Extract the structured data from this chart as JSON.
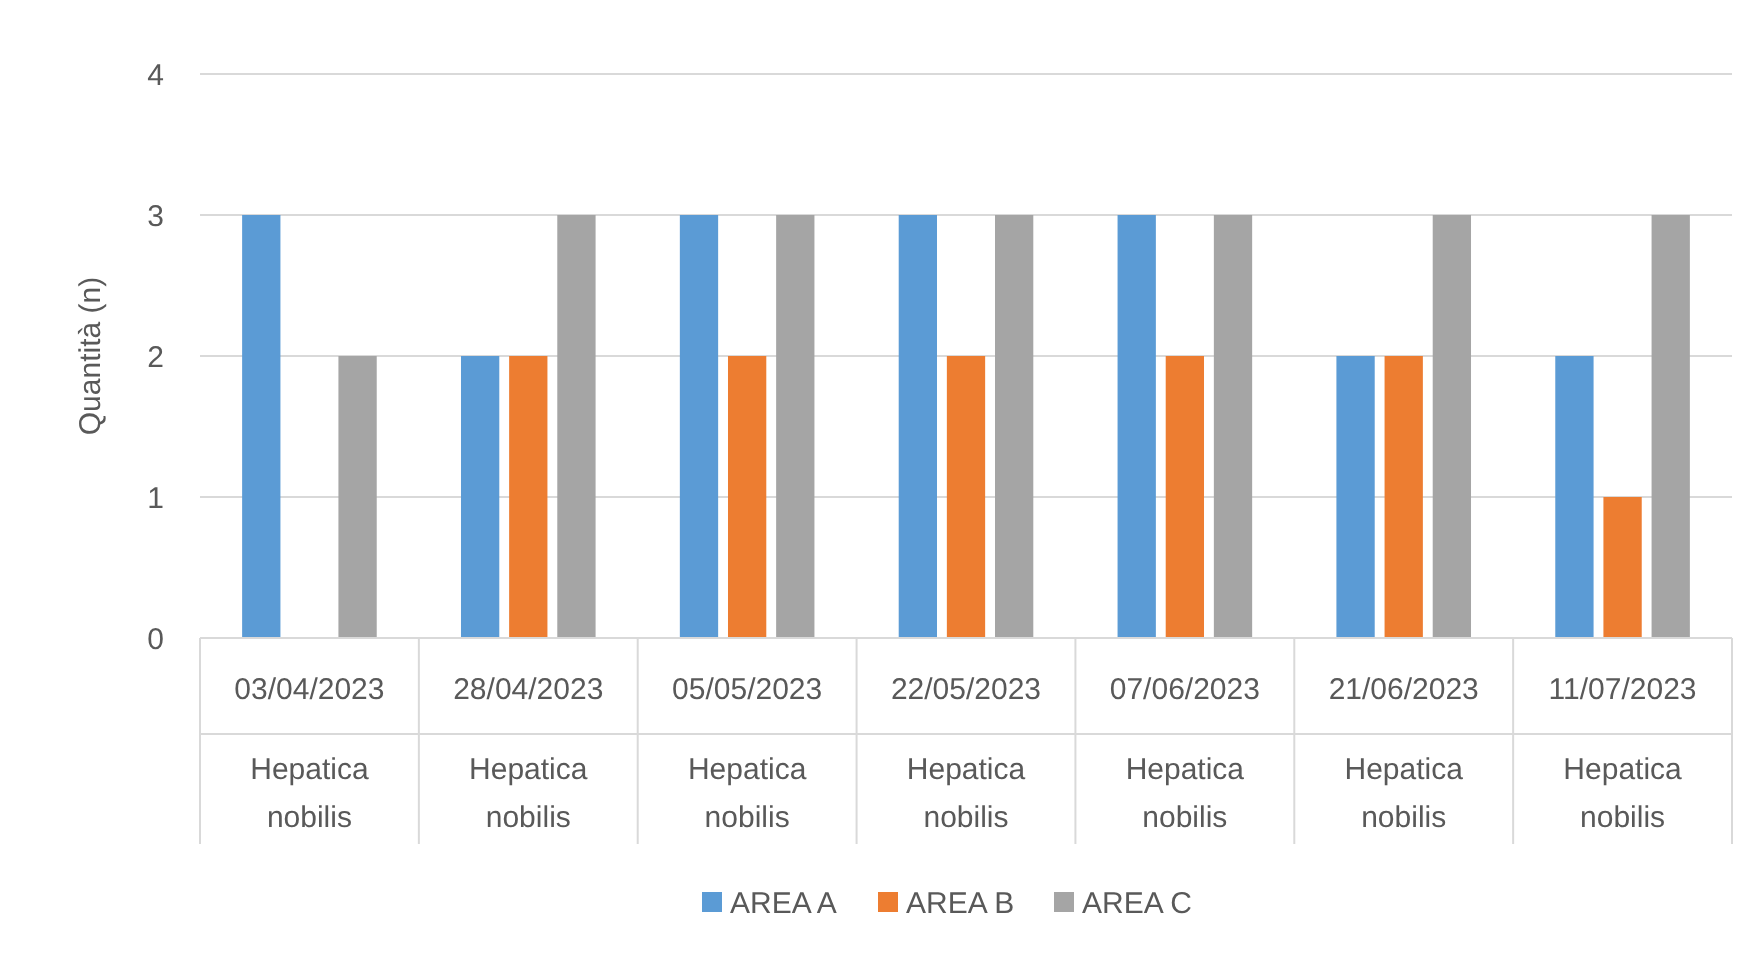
{
  "chart_data": {
    "type": "bar",
    "ylabel": "Quantità (n)",
    "categories": [
      "03/04/2023",
      "28/04/2023",
      "05/05/2023",
      "22/05/2023",
      "07/06/2023",
      "21/06/2023",
      "11/07/2023"
    ],
    "series": [
      {
        "name": "AREA A",
        "color": "#5b9bd5",
        "values": [
          3,
          2,
          3,
          3,
          3,
          2,
          2
        ]
      },
      {
        "name": "AREA B",
        "color": "#ed7d31",
        "values": [
          0,
          2,
          2,
          2,
          2,
          2,
          1
        ]
      },
      {
        "name": "AREA C",
        "color": "#a5a5a5",
        "values": [
          2,
          3,
          3,
          3,
          3,
          3,
          3
        ]
      }
    ],
    "annotations": [
      "Hepatica nobilis",
      "Hepatica nobilis",
      "Hepatica nobilis",
      "Hepatica nobilis",
      "Hepatica nobilis",
      "Hepatica nobilis",
      "Hepatica nobilis"
    ],
    "ylim": [
      0,
      4
    ],
    "yticks": [
      0,
      1,
      2,
      3,
      4
    ],
    "grid": "y",
    "legend": "bottom"
  }
}
